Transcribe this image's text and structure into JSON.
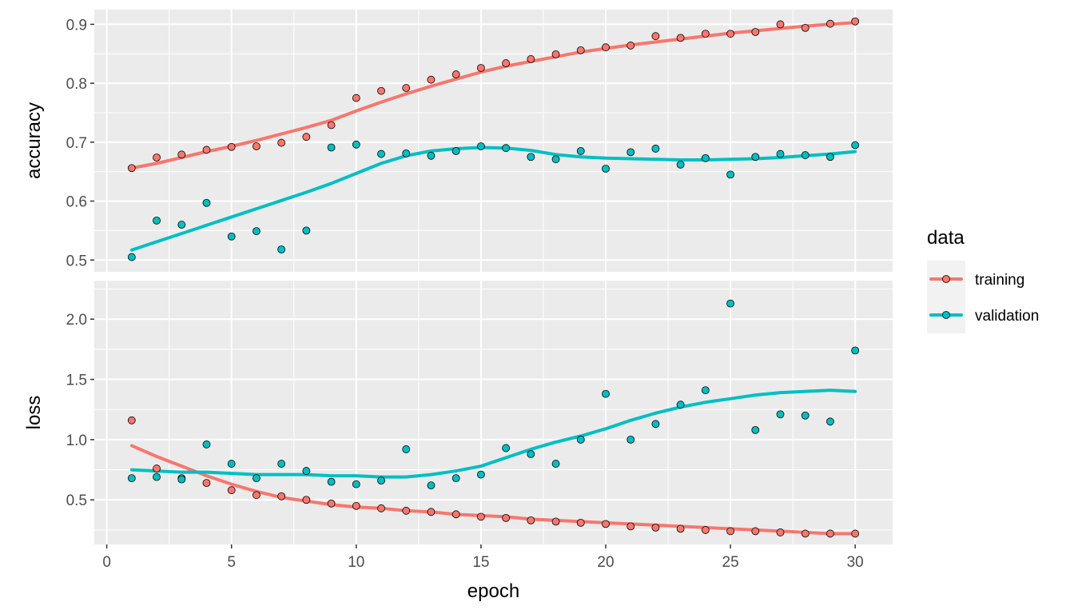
{
  "chart_data": {
    "type": "scatter",
    "smooth": true,
    "x": [
      1,
      2,
      3,
      4,
      5,
      6,
      7,
      8,
      9,
      10,
      11,
      12,
      13,
      14,
      15,
      16,
      17,
      18,
      19,
      20,
      21,
      22,
      23,
      24,
      25,
      26,
      27,
      28,
      29,
      30
    ],
    "xlabel": "epoch",
    "xlim": [
      -0.5,
      31.5
    ],
    "xticks": [
      0,
      5,
      10,
      15,
      20,
      25,
      30
    ],
    "grid": true,
    "legend": {
      "title": "data",
      "position": "right",
      "entries": [
        "training",
        "validation"
      ]
    },
    "colors": {
      "training": "#F8766D",
      "validation": "#00BFC4",
      "panel_background": "#EBEBEB",
      "grid": "#FFFFFF"
    },
    "panels": [
      {
        "ylabel": "accuracy",
        "ylim": [
          0.48,
          0.925
        ],
        "yticks": [
          "0.5",
          "0.6",
          "0.7",
          "0.8",
          "0.9"
        ],
        "series": [
          {
            "name": "training",
            "values": [
              0.656,
              0.674,
              0.679,
              0.687,
              0.692,
              0.693,
              0.699,
              0.709,
              0.729,
              0.775,
              0.787,
              0.792,
              0.806,
              0.815,
              0.826,
              0.834,
              0.841,
              0.849,
              0.856,
              0.861,
              0.864,
              0.88,
              0.877,
              0.884,
              0.884,
              0.887,
              0.9,
              0.894,
              0.901,
              0.905
            ],
            "smooth": [
              0.656,
              0.664,
              0.674,
              0.684,
              0.693,
              0.703,
              0.714,
              0.725,
              0.737,
              0.753,
              0.768,
              0.782,
              0.795,
              0.807,
              0.819,
              0.829,
              0.837,
              0.845,
              0.853,
              0.859,
              0.865,
              0.87,
              0.875,
              0.88,
              0.885,
              0.889,
              0.893,
              0.897,
              0.9,
              0.903
            ]
          },
          {
            "name": "validation",
            "values": [
              0.505,
              0.567,
              0.56,
              0.597,
              0.54,
              0.549,
              0.518,
              0.55,
              0.691,
              0.696,
              0.68,
              0.681,
              0.677,
              0.685,
              0.693,
              0.69,
              0.675,
              0.671,
              0.685,
              0.655,
              0.683,
              0.689,
              0.662,
              0.673,
              0.645,
              0.675,
              0.68,
              0.678,
              0.675,
              0.695
            ],
            "smooth": [
              0.517,
              0.531,
              0.545,
              0.559,
              0.573,
              0.587,
              0.601,
              0.615,
              0.63,
              0.647,
              0.664,
              0.677,
              0.685,
              0.689,
              0.691,
              0.69,
              0.686,
              0.679,
              0.675,
              0.673,
              0.672,
              0.671,
              0.67,
              0.67,
              0.671,
              0.672,
              0.674,
              0.677,
              0.68,
              0.684
            ]
          }
        ]
      },
      {
        "ylabel": "loss",
        "ylim": [
          0.13,
          2.32
        ],
        "yticks": [
          "0.5",
          "1.0",
          "1.5",
          "2.0"
        ],
        "series": [
          {
            "name": "training",
            "values": [
              1.16,
              0.76,
              0.68,
              0.64,
              0.58,
              0.54,
              0.53,
              0.5,
              0.47,
              0.45,
              0.43,
              0.41,
              0.4,
              0.38,
              0.36,
              0.35,
              0.33,
              0.32,
              0.31,
              0.3,
              0.28,
              0.27,
              0.26,
              0.25,
              0.24,
              0.24,
              0.23,
              0.22,
              0.22,
              0.22
            ],
            "smooth": [
              0.95,
              0.86,
              0.78,
              0.7,
              0.63,
              0.57,
              0.52,
              0.49,
              0.46,
              0.44,
              0.43,
              0.41,
              0.4,
              0.38,
              0.37,
              0.36,
              0.34,
              0.33,
              0.32,
              0.31,
              0.3,
              0.29,
              0.28,
              0.27,
              0.26,
              0.25,
              0.24,
              0.23,
              0.22,
              0.22
            ]
          },
          {
            "name": "validation",
            "values": [
              0.68,
              0.69,
              0.67,
              0.96,
              0.8,
              0.68,
              0.8,
              0.74,
              0.65,
              0.63,
              0.66,
              0.92,
              0.62,
              0.68,
              0.71,
              0.93,
              0.88,
              0.8,
              1.0,
              1.38,
              1.0,
              1.13,
              1.29,
              1.41,
              2.13,
              1.08,
              1.21,
              1.2,
              1.15,
              1.74
            ],
            "smooth": [
              0.75,
              0.74,
              0.73,
              0.73,
              0.72,
              0.71,
              0.71,
              0.71,
              0.7,
              0.7,
              0.69,
              0.69,
              0.71,
              0.74,
              0.78,
              0.85,
              0.92,
              0.98,
              1.03,
              1.09,
              1.16,
              1.22,
              1.27,
              1.31,
              1.34,
              1.37,
              1.39,
              1.4,
              1.41,
              1.4
            ]
          }
        ]
      }
    ]
  }
}
